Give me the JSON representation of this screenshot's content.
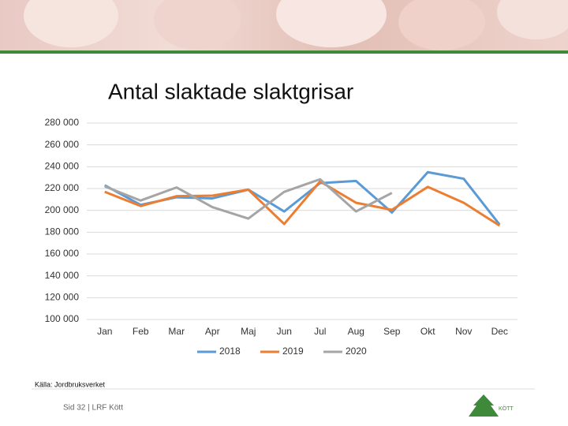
{
  "chart_data": {
    "type": "line",
    "title": "Antal slaktade slaktgrisar",
    "categories": [
      "Jan",
      "Feb",
      "Mar",
      "Apr",
      "Maj",
      "Jun",
      "Jul",
      "Aug",
      "Sep",
      "Okt",
      "Nov",
      "Dec"
    ],
    "series": [
      {
        "name": "2018",
        "color": "#5b9bd5",
        "values": [
          223000,
          205000,
          212000,
          211000,
          219000,
          199000,
          225000,
          227000,
          198000,
          235000,
          229000,
          187000
        ]
      },
      {
        "name": "2019",
        "color": "#ed7d31",
        "values": [
          217000,
          204000,
          213000,
          213500,
          219000,
          187500,
          226500,
          207000,
          200500,
          221500,
          207000,
          186000
        ]
      },
      {
        "name": "2020",
        "color": "#a5a5a5",
        "values": [
          222000,
          209000,
          221000,
          203000,
          192500,
          217000,
          228500,
          199000,
          216000,
          null,
          null,
          null
        ]
      }
    ],
    "ylim": [
      100000,
      280000
    ],
    "yticks": [
      {
        "value": 100000,
        "label": "100 000"
      },
      {
        "value": 120000,
        "label": "120 000"
      },
      {
        "value": 140000,
        "label": "140 000"
      },
      {
        "value": 160000,
        "label": "160 000"
      },
      {
        "value": 180000,
        "label": "180 000"
      },
      {
        "value": 200000,
        "label": "200 000"
      },
      {
        "value": 220000,
        "label": "220 000"
      },
      {
        "value": 240000,
        "label": "240 000"
      },
      {
        "value": 260000,
        "label": "260 000"
      },
      {
        "value": 280000,
        "label": "280 000"
      }
    ],
    "grid": true,
    "legend": "bottom"
  },
  "source": "Källa: Jordbruksverket",
  "footer": "Sid 32 | LRF Kött",
  "logo_text": "KÖTT"
}
